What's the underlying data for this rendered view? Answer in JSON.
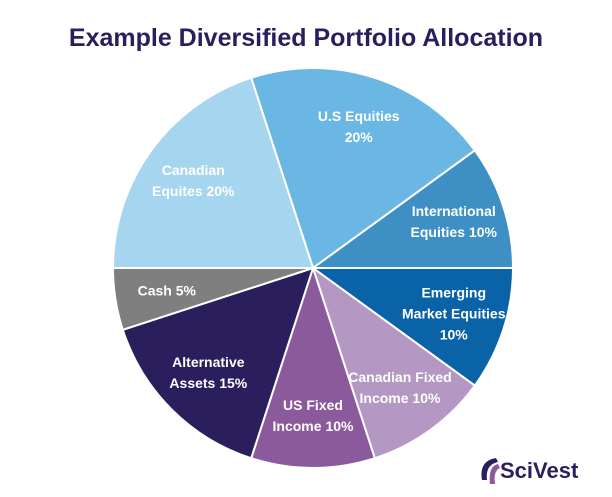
{
  "chart_data": {
    "type": "pie",
    "title": "Example Diversified Portfolio Allocation",
    "categories": [
      "U.S Equities",
      "International Equities",
      "Emerging Market Equities",
      "Canadian Fixed Income",
      "US Fixed Income",
      "Alternative Assets",
      "Cash",
      "Canadian Equites"
    ],
    "values": [
      20,
      10,
      10,
      10,
      10,
      15,
      5,
      20
    ],
    "value_labels": [
      "20%",
      "10%",
      "10%",
      "10%",
      "10%",
      "15%",
      "5%",
      "20%"
    ],
    "colors": [
      "#6ab7e3",
      "#3d8fc4",
      "#0b63a7",
      "#b497c3",
      "#8b5a9c",
      "#2b1e5c",
      "#7f7f7f",
      "#a6d5ef"
    ]
  },
  "logo": "SciVest"
}
